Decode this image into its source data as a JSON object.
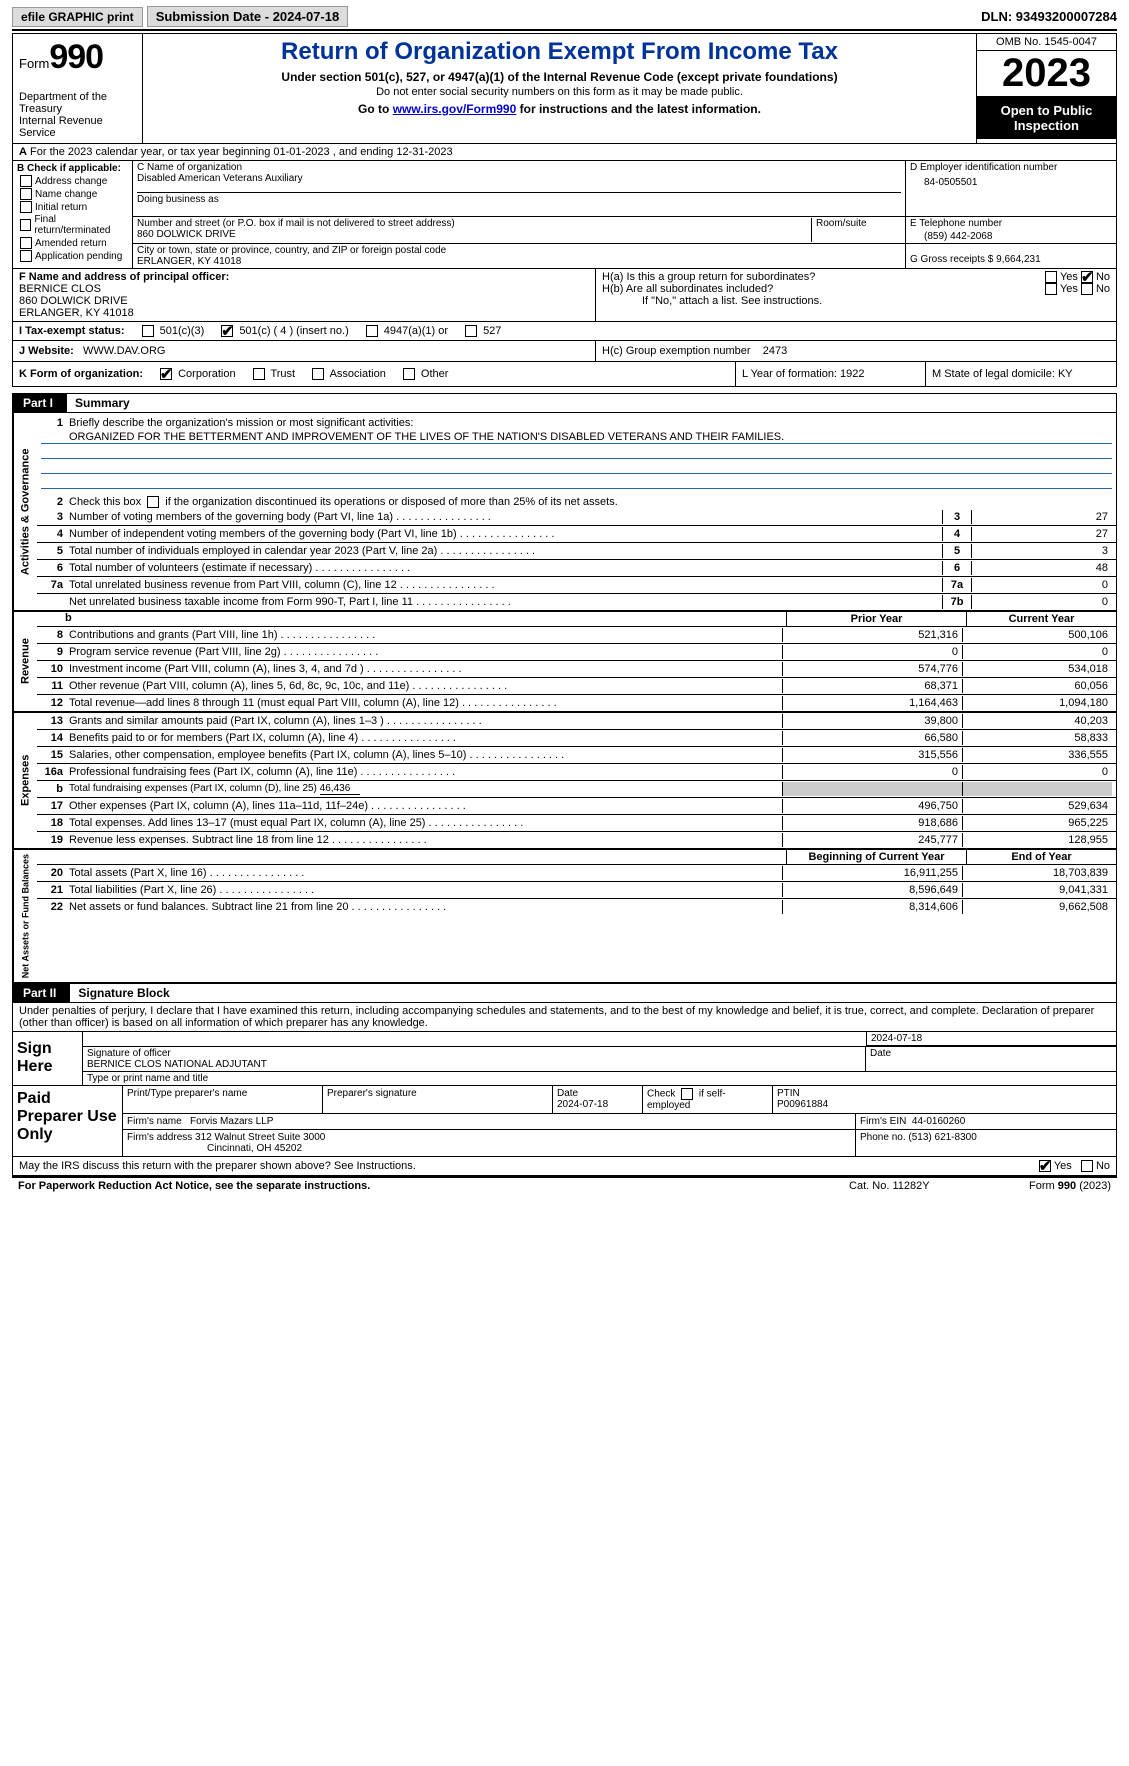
{
  "topbar": {
    "btn_efile": "efile GRAPHIC print",
    "submission_label": "Submission Date - 2024-07-18",
    "dln_label": "DLN: 93493200007284"
  },
  "header": {
    "form_word": "Form",
    "form_num": "990",
    "dept": "Department of the Treasury",
    "irs": "Internal Revenue Service",
    "title": "Return of Organization Exempt From Income Tax",
    "sub1": "Under section 501(c), 527, or 4947(a)(1) of the Internal Revenue Code (except private foundations)",
    "sub2": "Do not enter social security numbers on this form as it may be made public.",
    "sub3_pre": "Go to ",
    "sub3_link": "www.irs.gov/Form990",
    "sub3_post": " for instructions and the latest information.",
    "omb": "OMB No. 1545-0047",
    "year": "2023",
    "inspect": "Open to Public Inspection"
  },
  "rowA": {
    "prefix": "A",
    "text": "For the 2023 calendar year, or tax year beginning 01-01-2023   , and ending 12-31-2023"
  },
  "colB": {
    "title": "B Check if applicable:",
    "items": [
      "Address change",
      "Name change",
      "Initial return",
      "Final return/terminated",
      "Amended return",
      "Application pending"
    ]
  },
  "sectionC": {
    "c_label": "C Name of organization",
    "c_val": "Disabled American Veterans Auxiliary",
    "dba_label": "Doing business as",
    "addr_label": "Number and street (or P.O. box if mail is not delivered to street address)",
    "room_label": "Room/suite",
    "addr_val": "860 DOLWICK DRIVE",
    "city_label": "City or town, state or province, country, and ZIP or foreign postal code",
    "city_val": "ERLANGER, KY  41018"
  },
  "sectionD": {
    "d_label": "D Employer identification number",
    "d_val": "84-0505501",
    "e_label": "E Telephone number",
    "e_val": "(859) 442-2068",
    "g_label": "G Gross receipts $ 9,664,231"
  },
  "sectionF": {
    "f_label": "F  Name and address of principal officer:",
    "f_name": "BERNICE CLOS",
    "f_addr1": "860 DOLWICK DRIVE",
    "f_addr2": "ERLANGER, KY  41018"
  },
  "sectionH": {
    "ha_label": "H(a)  Is this a group return for subordinates?",
    "hb_label": "H(b)  Are all subordinates included?",
    "hno_note": "If \"No,\" attach a list. See instructions.",
    "hc_label": "H(c)  Group exemption number",
    "hc_val": "2473",
    "yes": "Yes",
    "no": "No"
  },
  "rowI": {
    "label": "I   Tax-exempt status:",
    "opts": [
      "501(c)(3)",
      "501(c) ( 4 ) (insert no.)",
      "4947(a)(1) or",
      "527"
    ]
  },
  "rowJ": {
    "label": "J   Website:",
    "val": "WWW.DAV.ORG"
  },
  "rowK": {
    "k1": "K Form of organization:",
    "opts": [
      "Corporation",
      "Trust",
      "Association",
      "Other"
    ],
    "k2": "L Year of formation: 1922",
    "k3": "M State of legal domicile: KY"
  },
  "part1": {
    "tab": "Part I",
    "title": "Summary"
  },
  "govern": {
    "vlabel": "Activities & Governance",
    "l1a": "Briefly describe the organization's mission or most significant activities:",
    "l1b": "ORGANIZED FOR THE BETTERMENT AND IMPROVEMENT OF THE LIVES OF THE NATION'S DISABLED VETERANS AND THEIR FAMILIES.",
    "l2": "Check this box         if the organization discontinued its operations or disposed of more than 25% of its net assets.",
    "l3": "Number of voting members of the governing body (Part VI, line 1a)",
    "l4": "Number of independent voting members of the governing body (Part VI, line 1b)",
    "l5": "Total number of individuals employed in calendar year 2023 (Part V, line 2a)",
    "l6": "Total number of volunteers (estimate if necessary)",
    "l7a": "Total unrelated business revenue from Part VIII, column (C), line 12",
    "l7b": "Net unrelated business taxable income from Form 990-T, Part I, line 11",
    "v3": "27",
    "v4": "27",
    "v5": "3",
    "v6": "48",
    "v7a": "0",
    "v7b": "0"
  },
  "revenue": {
    "vlabel": "Revenue",
    "hdr_prior": "Prior Year",
    "hdr_curr": "Current Year",
    "rows": [
      {
        "n": "8",
        "t": "Contributions and grants (Part VIII, line 1h)",
        "p": "521,316",
        "c": "500,106"
      },
      {
        "n": "9",
        "t": "Program service revenue (Part VIII, line 2g)",
        "p": "0",
        "c": "0"
      },
      {
        "n": "10",
        "t": "Investment income (Part VIII, column (A), lines 3, 4, and 7d )",
        "p": "574,776",
        "c": "534,018"
      },
      {
        "n": "11",
        "t": "Other revenue (Part VIII, column (A), lines 5, 6d, 8c, 9c, 10c, and 11e)",
        "p": "68,371",
        "c": "60,056"
      },
      {
        "n": "12",
        "t": "Total revenue—add lines 8 through 11 (must equal Part VIII, column (A), line 12)",
        "p": "1,164,463",
        "c": "1,094,180"
      }
    ]
  },
  "expenses": {
    "vlabel": "Expenses",
    "rows": [
      {
        "n": "13",
        "t": "Grants and similar amounts paid (Part IX, column (A), lines 1–3 )",
        "p": "39,800",
        "c": "40,203"
      },
      {
        "n": "14",
        "t": "Benefits paid to or for members (Part IX, column (A), line 4)",
        "p": "66,580",
        "c": "58,833"
      },
      {
        "n": "15",
        "t": "Salaries, other compensation, employee benefits (Part IX, column (A), lines 5–10)",
        "p": "315,556",
        "c": "336,555"
      },
      {
        "n": "16a",
        "t": "Professional fundraising fees (Part IX, column (A), line 11e)",
        "p": "0",
        "c": "0"
      }
    ],
    "l16b": "Total fundraising expenses (Part IX, column (D), line 25) ",
    "l16b_val": "46,436",
    "rows2": [
      {
        "n": "17",
        "t": "Other expenses (Part IX, column (A), lines 11a–11d, 11f–24e)",
        "p": "496,750",
        "c": "529,634"
      },
      {
        "n": "18",
        "t": "Total expenses. Add lines 13–17 (must equal Part IX, column (A), line 25)",
        "p": "918,686",
        "c": "965,225"
      },
      {
        "n": "19",
        "t": "Revenue less expenses. Subtract line 18 from line 12",
        "p": "245,777",
        "c": "128,955"
      }
    ]
  },
  "netassets": {
    "vlabel": "Net Assets or Fund Balances",
    "hdr_beg": "Beginning of Current Year",
    "hdr_end": "End of Year",
    "rows": [
      {
        "n": "20",
        "t": "Total assets (Part X, line 16)",
        "p": "16,911,255",
        "c": "18,703,839"
      },
      {
        "n": "21",
        "t": "Total liabilities (Part X, line 26)",
        "p": "8,596,649",
        "c": "9,041,331"
      },
      {
        "n": "22",
        "t": "Net assets or fund balances. Subtract line 21 from line 20",
        "p": "8,314,606",
        "c": "9,662,508"
      }
    ]
  },
  "part2": {
    "tab": "Part II",
    "title": "Signature Block"
  },
  "penalties": "Under penalties of perjury, I declare that I have examined this return, including accompanying schedules and statements, and to the best of my knowledge and belief, it is true, correct, and complete. Declaration of preparer (other than officer) is based on all information of which preparer has any knowledge.",
  "sign": {
    "lbl": "Sign Here",
    "date": "2024-07-18",
    "sig_lbl": "Signature of officer",
    "name": "BERNICE CLOS  NATIONAL ADJUTANT",
    "date_lbl": "Date",
    "type_lbl": "Type or print name and title"
  },
  "prep": {
    "lbl": "Paid Preparer Use Only",
    "h1": "Print/Type preparer's name",
    "h2": "Preparer's signature",
    "h3": "Date",
    "h3v": "2024-07-18",
    "h4": "Check         if self-employed",
    "h5": "PTIN",
    "h5v": "P00961884",
    "firm_lbl": "Firm's name",
    "firm": "Forvis Mazars LLP",
    "ein_lbl": "Firm's EIN",
    "ein": "44-0160260",
    "addr_lbl": "Firm's address",
    "addr1": "312 Walnut Street Suite 3000",
    "addr2": "Cincinnati, OH  45202",
    "phone_lbl": "Phone no.",
    "phone": "(513) 621-8300"
  },
  "discuss": {
    "text": "May the IRS discuss this return with the preparer shown above? See Instructions.",
    "yes": "Yes",
    "no": "No"
  },
  "footer": {
    "f1": "For Paperwork Reduction Act Notice, see the separate instructions.",
    "f2": "Cat. No. 11282Y",
    "f3": "Form 990 (2023)"
  }
}
